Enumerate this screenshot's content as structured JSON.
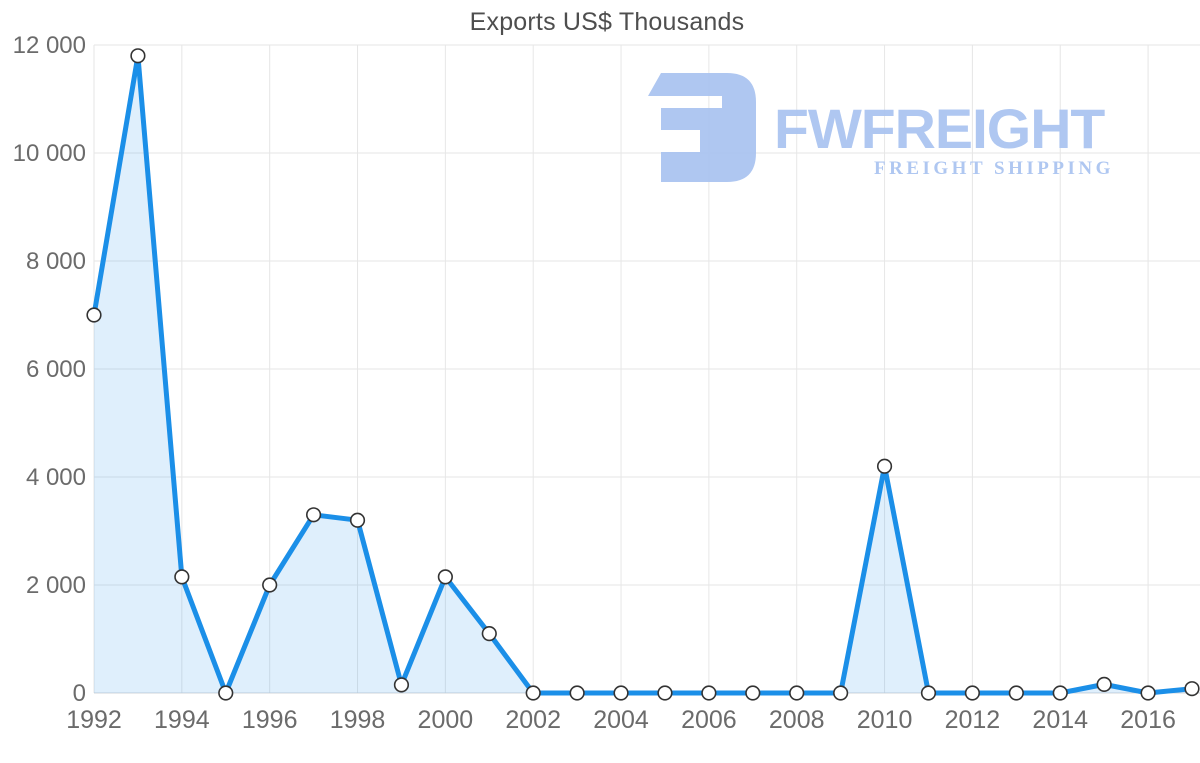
{
  "title": "Exports US$ Thousands",
  "watermark": {
    "wordmark": "FWFREIGHT",
    "subtitle": "FREIGHT SHIPPING",
    "color": "#a9c3f0"
  },
  "chart_data": {
    "type": "area",
    "title": "Exports US$ Thousands",
    "series_name": "Exports US$ Thousands",
    "x": [
      1992,
      1993,
      1994,
      1995,
      1996,
      1997,
      1998,
      1999,
      2000,
      2001,
      2002,
      2003,
      2004,
      2005,
      2006,
      2007,
      2008,
      2009,
      2010,
      2011,
      2012,
      2013,
      2014,
      2015,
      2016,
      2017
    ],
    "values": [
      7000,
      11800,
      2150,
      0,
      2000,
      3300,
      3200,
      150,
      2150,
      1100,
      0,
      0,
      0,
      0,
      0,
      0,
      0,
      0,
      4200,
      0,
      0,
      0,
      0,
      160,
      0,
      80
    ],
    "ylim": [
      0,
      12000
    ],
    "xlim": [
      1992,
      2017
    ],
    "y_ticks": [
      {
        "value": 0,
        "label": "0"
      },
      {
        "value": 2000,
        "label": "2 000"
      },
      {
        "value": 4000,
        "label": "4 000"
      },
      {
        "value": 6000,
        "label": "6 000"
      },
      {
        "value": 8000,
        "label": "8 000"
      },
      {
        "value": 10000,
        "label": "10 000"
      },
      {
        "value": 12000,
        "label": "12 000"
      }
    ],
    "x_ticks": [
      {
        "value": 1992,
        "label": "1992"
      },
      {
        "value": 1994,
        "label": "1994"
      },
      {
        "value": 1996,
        "label": "1996"
      },
      {
        "value": 1998,
        "label": "1998"
      },
      {
        "value": 2000,
        "label": "2000"
      },
      {
        "value": 2002,
        "label": "2002"
      },
      {
        "value": 2004,
        "label": "2004"
      },
      {
        "value": 2006,
        "label": "2006"
      },
      {
        "value": 2008,
        "label": "2008"
      },
      {
        "value": 2010,
        "label": "2010"
      },
      {
        "value": 2012,
        "label": "2012"
      },
      {
        "value": 2014,
        "label": "2014"
      },
      {
        "value": 2016,
        "label": "2016"
      }
    ],
    "grid": true,
    "legend": "none",
    "colors": {
      "line": "#1b8fe8",
      "area_fill": "rgba(30, 144, 235, 0.14)",
      "marker_fill": "#ffffff",
      "marker_stroke": "#333333",
      "grid": "#e6e6e6",
      "axis_line": "#d2d6da",
      "tick_label": "#6b6b6b",
      "title": "#4e4e4e"
    }
  }
}
